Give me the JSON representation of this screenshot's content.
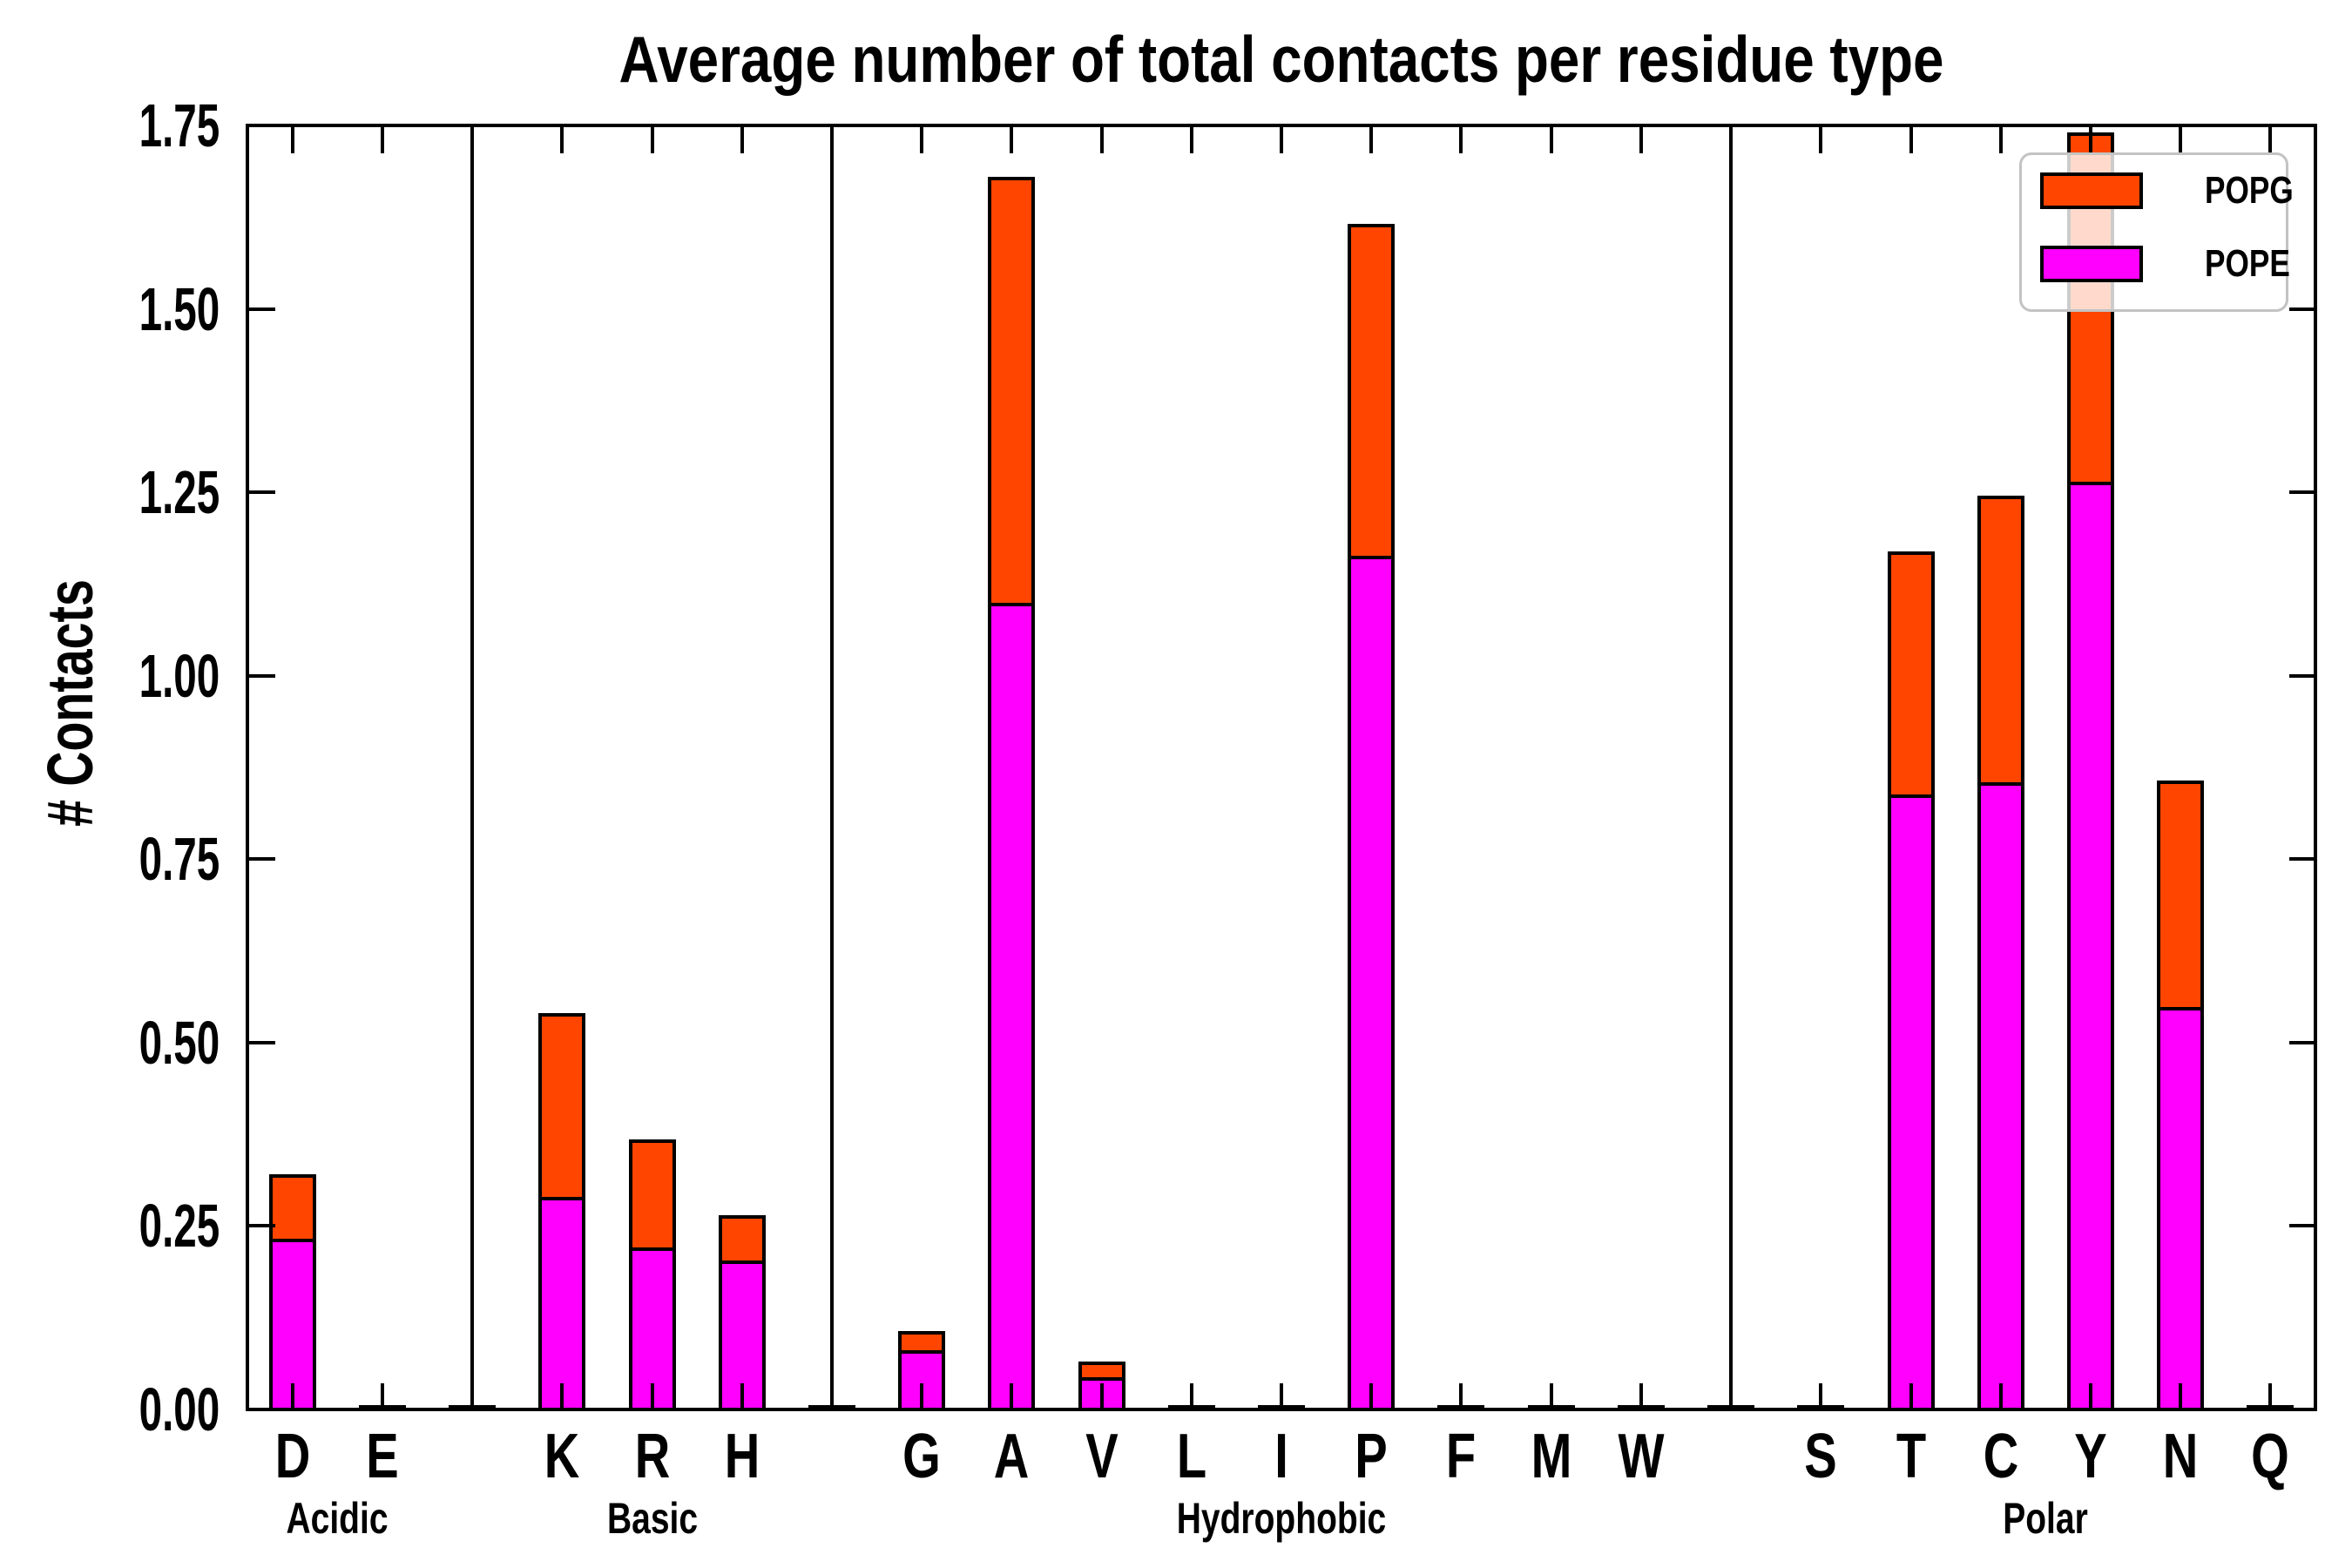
{
  "title": "Average number of total contacts per residue type",
  "ylabel": "# Contacts",
  "colors": {
    "popg": "#FF4500",
    "pope": "#FF00FF",
    "edge": "#000000",
    "background": "#FFFFFF",
    "legend_border": "#C3C3C3"
  },
  "legend": {
    "items": [
      {
        "label": "POPG",
        "color_key": "popg"
      },
      {
        "label": "POPE",
        "color_key": "pope"
      }
    ]
  },
  "yticks": [
    "0.00",
    "0.25",
    "0.50",
    "0.75",
    "1.00",
    "1.25",
    "1.50",
    "1.75"
  ],
  "chart_data": {
    "type": "bar",
    "stacked": true,
    "title": "Average number of total contacts per residue type",
    "xlabel": "",
    "ylabel": "# Contacts",
    "ylim": [
      0,
      1.75
    ],
    "ytick_step": 0.25,
    "grid": false,
    "legend_position": "upper right",
    "categories": [
      "D",
      "E",
      "K",
      "R",
      "H",
      "G",
      "A",
      "V",
      "L",
      "I",
      "P",
      "F",
      "M",
      "W",
      "S",
      "T",
      "C",
      "Y",
      "N",
      "Q"
    ],
    "groups": [
      {
        "name": "Acidic",
        "residues": [
          "D",
          "E"
        ]
      },
      {
        "name": "Basic",
        "residues": [
          "K",
          "R",
          "H"
        ]
      },
      {
        "name": "Hydrophobic",
        "residues": [
          "G",
          "A",
          "V",
          "L",
          "I",
          "P",
          "F",
          "M",
          "W"
        ]
      },
      {
        "name": "Polar",
        "residues": [
          "S",
          "T",
          "C",
          "Y",
          "N",
          "Q"
        ]
      }
    ],
    "series": [
      {
        "name": "POPE",
        "color": "#FF00FF",
        "values": [
          0.233,
          0.0,
          0.29,
          0.221,
          0.203,
          0.081,
          1.099,
          0.044,
          0.0,
          0.0,
          1.164,
          0.0,
          0.0,
          0.0,
          0.0,
          0.838,
          0.855,
          1.264,
          0.548,
          0.0
        ]
      },
      {
        "name": "POPG",
        "color": "#FF4500",
        "values": [
          0.088,
          0.0,
          0.25,
          0.147,
          0.062,
          0.026,
          0.581,
          0.021,
          0.0,
          0.0,
          0.452,
          0.0,
          0.0,
          0.0,
          0.0,
          0.331,
          0.39,
          0.476,
          0.309,
          0.0
        ]
      }
    ],
    "totals": [
      0.321,
      0.0,
      0.54,
      0.368,
      0.265,
      0.107,
      1.68,
      0.065,
      0.0,
      0.0,
      1.616,
      0.0,
      0.0,
      0.0,
      0.0,
      1.169,
      1.245,
      1.74,
      0.857,
      0.0
    ]
  }
}
